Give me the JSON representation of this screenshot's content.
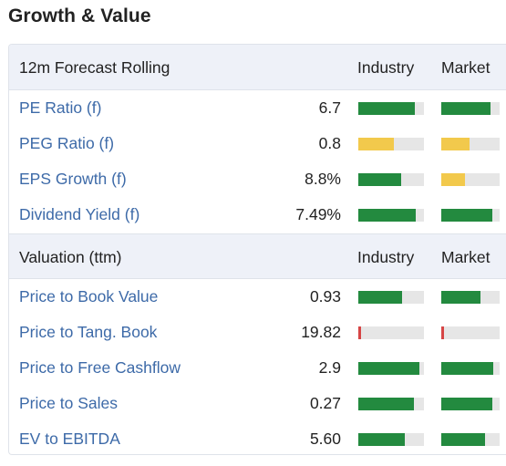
{
  "title": "Growth & Value",
  "colors": {
    "good": "#238a3f",
    "neutral": "#f2c94c",
    "poor": "#d64545",
    "track": "#e6e6e6",
    "link": "#3d6aa8"
  },
  "forecast": {
    "header": "12m Forecast Rolling",
    "industry_label": "Industry",
    "market_label": "Market",
    "rows": [
      {
        "label": "PE Ratio (f)",
        "value": "6.7",
        "industry": {
          "level": 0.86,
          "status": "good"
        },
        "market": {
          "level": 0.84,
          "status": "good"
        }
      },
      {
        "label": "PEG Ratio (f)",
        "value": "0.8",
        "industry": {
          "level": 0.54,
          "status": "neutral"
        },
        "market": {
          "level": 0.48,
          "status": "neutral"
        }
      },
      {
        "label": "EPS Growth (f)",
        "value": "8.8%",
        "industry": {
          "level": 0.65,
          "status": "good"
        },
        "market": {
          "level": 0.41,
          "status": "neutral"
        }
      },
      {
        "label": "Dividend Yield (f)",
        "value": "7.49%",
        "industry": {
          "level": 0.88,
          "status": "good"
        },
        "market": {
          "level": 0.88,
          "status": "good"
        }
      }
    ]
  },
  "valuation": {
    "header": "Valuation (ttm)",
    "industry_label": "Industry",
    "market_label": "Market",
    "rows": [
      {
        "label": "Price to Book Value",
        "value": "0.93",
        "industry": {
          "level": 0.67,
          "status": "good"
        },
        "market": {
          "level": 0.67,
          "status": "good"
        }
      },
      {
        "label": "Price to Tang. Book",
        "value": "19.82",
        "industry": {
          "level": 0.04,
          "status": "poor"
        },
        "market": {
          "level": 0.04,
          "status": "poor"
        }
      },
      {
        "label": "Price to Free Cashflow",
        "value": "2.9",
        "industry": {
          "level": 0.93,
          "status": "good"
        },
        "market": {
          "level": 0.89,
          "status": "good"
        }
      },
      {
        "label": "Price to Sales",
        "value": "0.27",
        "industry": {
          "level": 0.85,
          "status": "good"
        },
        "market": {
          "level": 0.87,
          "status": "good"
        }
      },
      {
        "label": "EV to EBITDA",
        "value": "5.60",
        "industry": {
          "level": 0.71,
          "status": "good"
        },
        "market": {
          "level": 0.75,
          "status": "good"
        }
      }
    ]
  }
}
